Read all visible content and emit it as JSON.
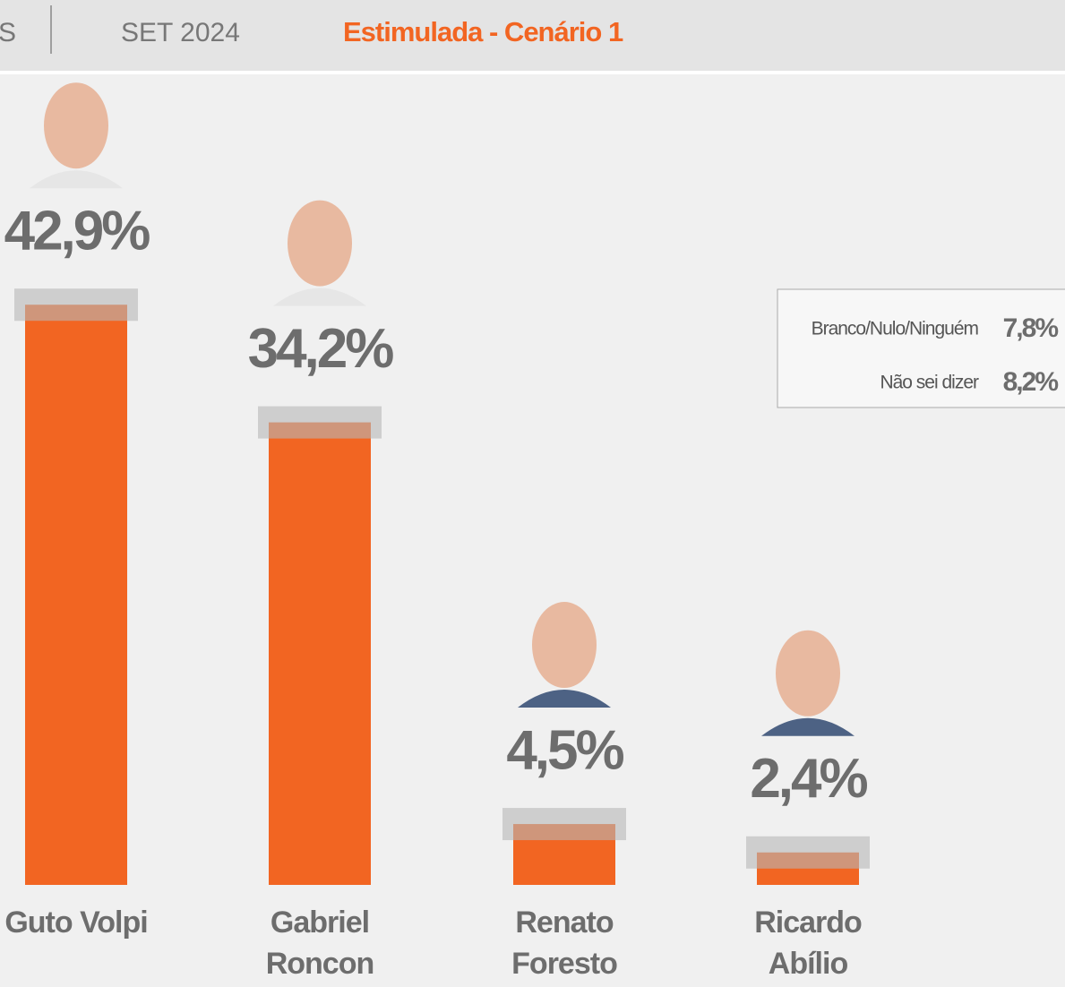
{
  "header": {
    "left_fragment": "S",
    "date": "SET 2024"
  },
  "chart_data": {
    "type": "bar",
    "title": "Estimulada - Cenário 1",
    "categories": [
      "Guto Volpi",
      "Gabriel Roncon",
      "Renato Foresto",
      "Ricardo Abílio"
    ],
    "values": [
      42.9,
      34.2,
      4.5,
      2.4
    ],
    "value_labels": [
      "42,9%",
      "34,2%",
      "4,5%",
      "2,4%"
    ],
    "color": "#f26522",
    "others": [
      {
        "label": "Branco/Nulo/Ninguém",
        "value": 7.8,
        "value_label": "7,8%"
      },
      {
        "label": "Não sei dizer",
        "value": 8.2,
        "value_label": "8,2%"
      }
    ]
  }
}
